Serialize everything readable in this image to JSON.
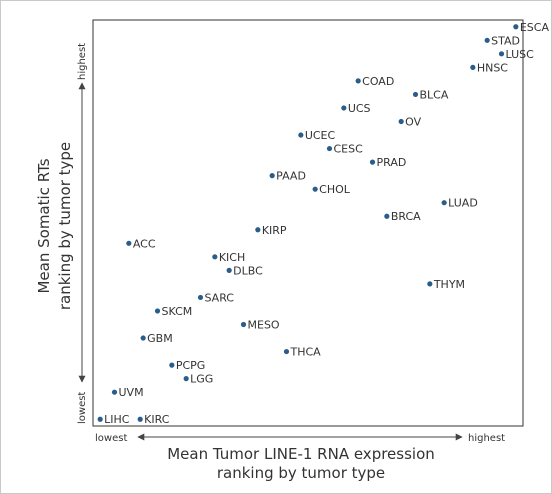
{
  "chart_data": {
    "type": "scatter",
    "xlabel_line1": "Mean Tumor LINE-1 RNA expression",
    "xlabel_line2": "ranking by tumor type",
    "ylabel_line1": "Mean Somatic RTs",
    "ylabel_line2": "ranking by tumor type",
    "x_low_label": "lowest",
    "x_high_label": "highest",
    "y_low_label": "lowest",
    "y_high_label": "highest",
    "xlim": [
      0.5,
      30.5
    ],
    "ylim": [
      0.5,
      30.5
    ],
    "grid": false,
    "marker_color": "#2b5d8c",
    "points": [
      {
        "label": "ESCA",
        "x": 30,
        "y": 30
      },
      {
        "label": "STAD",
        "x": 28,
        "y": 29
      },
      {
        "label": "LUSC",
        "x": 29,
        "y": 28
      },
      {
        "label": "HNSC",
        "x": 27,
        "y": 27
      },
      {
        "label": "COAD",
        "x": 19,
        "y": 26
      },
      {
        "label": "BLCA",
        "x": 23,
        "y": 25
      },
      {
        "label": "UCS",
        "x": 18,
        "y": 24
      },
      {
        "label": "OV",
        "x": 22,
        "y": 23
      },
      {
        "label": "UCEC",
        "x": 15,
        "y": 22
      },
      {
        "label": "CESC",
        "x": 17,
        "y": 21
      },
      {
        "label": "PRAD",
        "x": 20,
        "y": 20
      },
      {
        "label": "PAAD",
        "x": 13,
        "y": 19
      },
      {
        "label": "CHOL",
        "x": 16,
        "y": 18
      },
      {
        "label": "LUAD",
        "x": 25,
        "y": 17
      },
      {
        "label": "BRCA",
        "x": 21,
        "y": 16
      },
      {
        "label": "KIRP",
        "x": 12,
        "y": 15
      },
      {
        "label": "ACC",
        "x": 3,
        "y": 14
      },
      {
        "label": "KICH",
        "x": 9,
        "y": 13
      },
      {
        "label": "DLBC",
        "x": 10,
        "y": 12
      },
      {
        "label": "THYM",
        "x": 24,
        "y": 11
      },
      {
        "label": "SARC",
        "x": 8,
        "y": 10
      },
      {
        "label": "SKCM",
        "x": 5,
        "y": 9
      },
      {
        "label": "MESO",
        "x": 11,
        "y": 8
      },
      {
        "label": "GBM",
        "x": 4,
        "y": 7
      },
      {
        "label": "THCA",
        "x": 14,
        "y": 6
      },
      {
        "label": "PCPG",
        "x": 6,
        "y": 5
      },
      {
        "label": "LGG",
        "x": 7,
        "y": 4
      },
      {
        "label": "UVM",
        "x": 2,
        "y": 3
      },
      {
        "label": "LIHC",
        "x": 1,
        "y": 1
      },
      {
        "label": "KIRC",
        "x": 1,
        "y": 1
      }
    ]
  }
}
